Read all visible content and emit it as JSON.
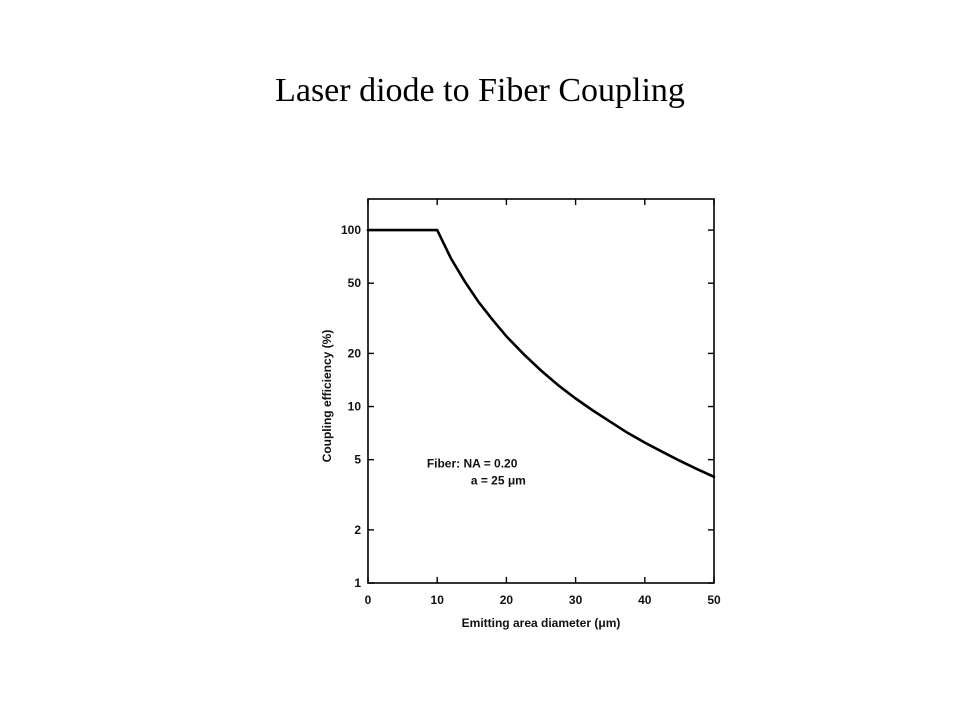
{
  "page": {
    "title": "Laser diode to Fiber Coupling"
  },
  "chart_data": {
    "type": "line",
    "xlabel": "Emitting area diameter (μm)",
    "ylabel": "Coupling efficiency (%)",
    "xlim": [
      0,
      50
    ],
    "ylim": [
      1,
      150
    ],
    "yscale": "log",
    "grid": false,
    "x_ticks": [
      0,
      10,
      20,
      30,
      40,
      50
    ],
    "x_tick_labels": [
      "0",
      "10",
      "20",
      "30",
      "40",
      "50"
    ],
    "y_ticks": [
      1,
      2,
      5,
      10,
      20,
      50,
      100
    ],
    "y_tick_labels": [
      "1",
      "2",
      "5",
      "10",
      "20",
      "50",
      "100"
    ],
    "annotation": {
      "line1": "Fiber:  NA = 0.20",
      "line2": "a = 25 μm",
      "at_x": 8.5,
      "at_y": 4.5
    },
    "series": [
      {
        "x": [
          0,
          10,
          12,
          14,
          16,
          18,
          20,
          22.5,
          25,
          27.5,
          30,
          32.5,
          35,
          37.5,
          40,
          42.5,
          45,
          47.5,
          50
        ],
        "values": [
          100,
          100,
          69,
          51,
          39,
          31,
          25,
          19.8,
          16,
          13.2,
          11.1,
          9.5,
          8.2,
          7.1,
          6.25,
          5.55,
          4.94,
          4.43,
          4.0
        ],
        "color": "#000000"
      }
    ]
  }
}
